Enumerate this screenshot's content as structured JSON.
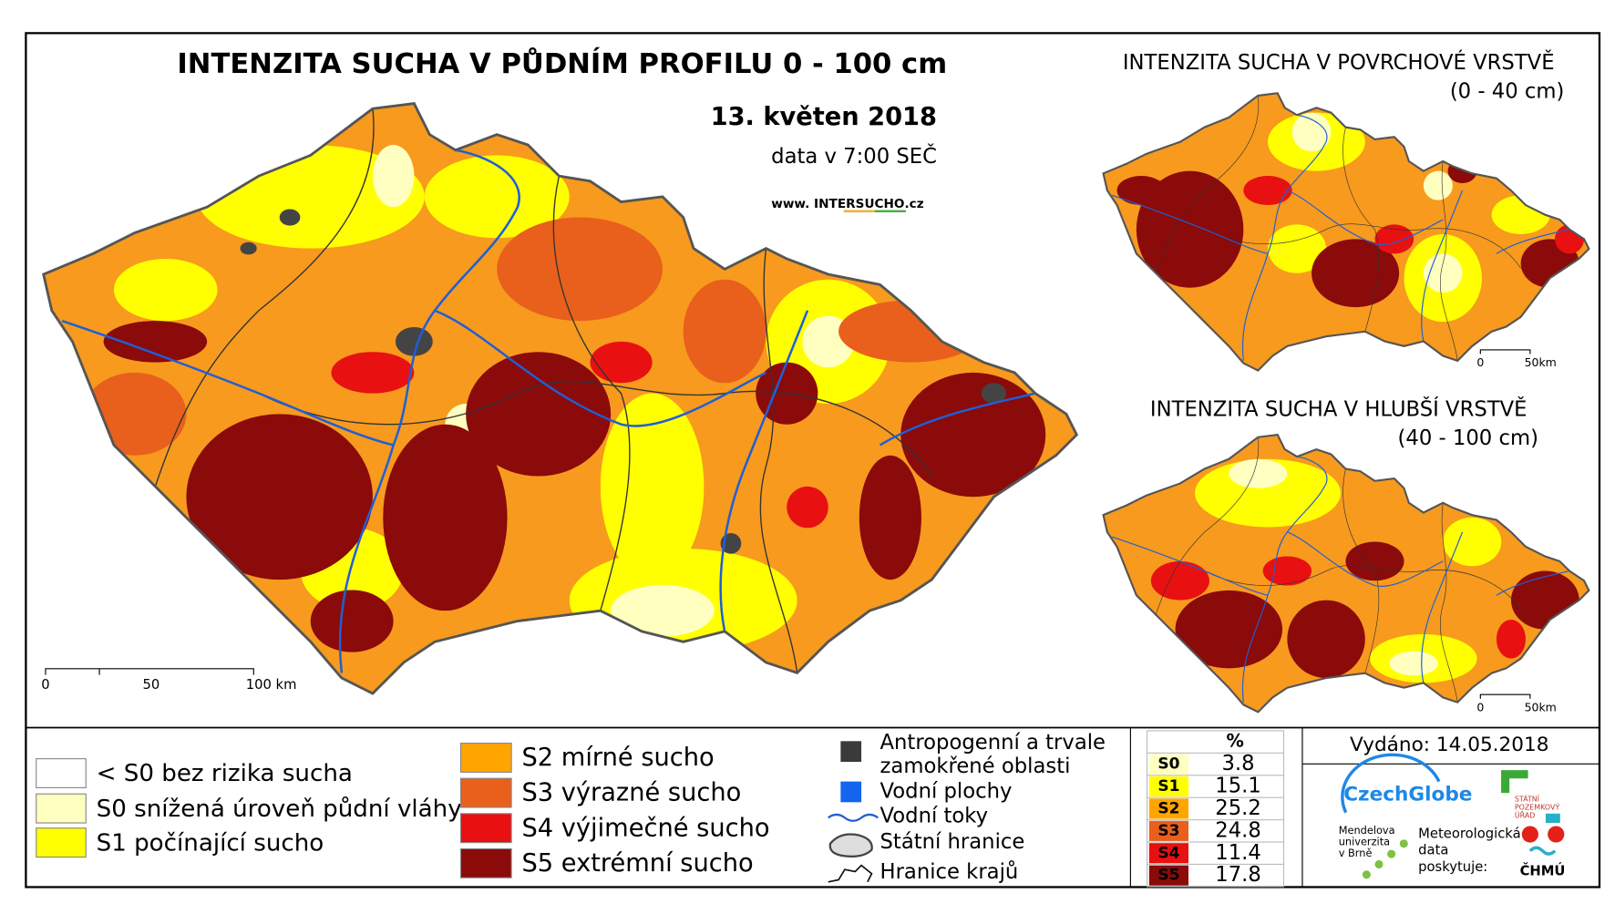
{
  "main_map": {
    "title": "INTENZITA SUCHA V PŮDNÍM PROFILU 0 - 100 cm",
    "date": "13. květen 2018",
    "time": "data v 7:00 SEČ",
    "url": [
      "www. ",
      "INTER",
      "SUCHO",
      ".cz"
    ],
    "scale": [
      "0",
      "50",
      "100 km"
    ]
  },
  "surface_map": {
    "title": "INTENZITA SUCHA V POVRCHOVÉ VRSTVĚ",
    "subtitle": "(0 - 40 cm)",
    "scale": [
      "0",
      "50km"
    ]
  },
  "deep_map": {
    "title": "INTENZITA SUCHA V HLUBŠÍ VRSTVĚ",
    "subtitle": "(40 - 100 cm)",
    "scale": [
      "0",
      "50km"
    ]
  },
  "legend": {
    "classes": [
      {
        "label": "< S0 bez rizika sucha",
        "color": "#ffffff"
      },
      {
        "label": "S0 snížená úroveň půdní vláhy",
        "color": "#ffffc0"
      },
      {
        "label": "S1 počínající sucho",
        "color": "#ffff00"
      },
      {
        "label": "S2 mírné sucho",
        "color": "#ffa500"
      },
      {
        "label": "S3 výrazné sucho",
        "color": "#e8601c"
      },
      {
        "label": "S4 výjimečné sucho",
        "color": "#e81010"
      },
      {
        "label": "S5 extrémní sucho",
        "color": "#8b0a0a"
      }
    ],
    "overlays": [
      "Antropogenní a trvale",
      "zamokřené oblasti",
      "Vodní plochy",
      "Vodní toky",
      "Státní hranice",
      "Hranice krajů"
    ]
  },
  "stats": {
    "header": "%",
    "rows": [
      {
        "code": "S0",
        "value": 3.8,
        "value_label": "3.8"
      },
      {
        "code": "S1",
        "value": 15.1,
        "value_label": "15.1"
      },
      {
        "code": "S2",
        "value": 25.2,
        "value_label": "25.2"
      },
      {
        "code": "S3",
        "value": 24.8,
        "value_label": "24.8"
      },
      {
        "code": "S4",
        "value": 11.4,
        "value_label": "11.4"
      },
      {
        "code": "S5",
        "value": 17.8,
        "value_label": "17.8"
      }
    ]
  },
  "issued": "Vydáno: 14.05.2018",
  "logos": {
    "czechglobe": "CzechGlobe",
    "spu": [
      "STÁTNÍ",
      "POZEMKOVÝ",
      "ÚŘAD"
    ],
    "mendel": [
      "Mendelova",
      "univerzita",
      "v Brně"
    ],
    "chmi_text": [
      "Meteorologická",
      "data",
      "poskytuje:"
    ],
    "chmu": "ČHMÚ"
  }
}
